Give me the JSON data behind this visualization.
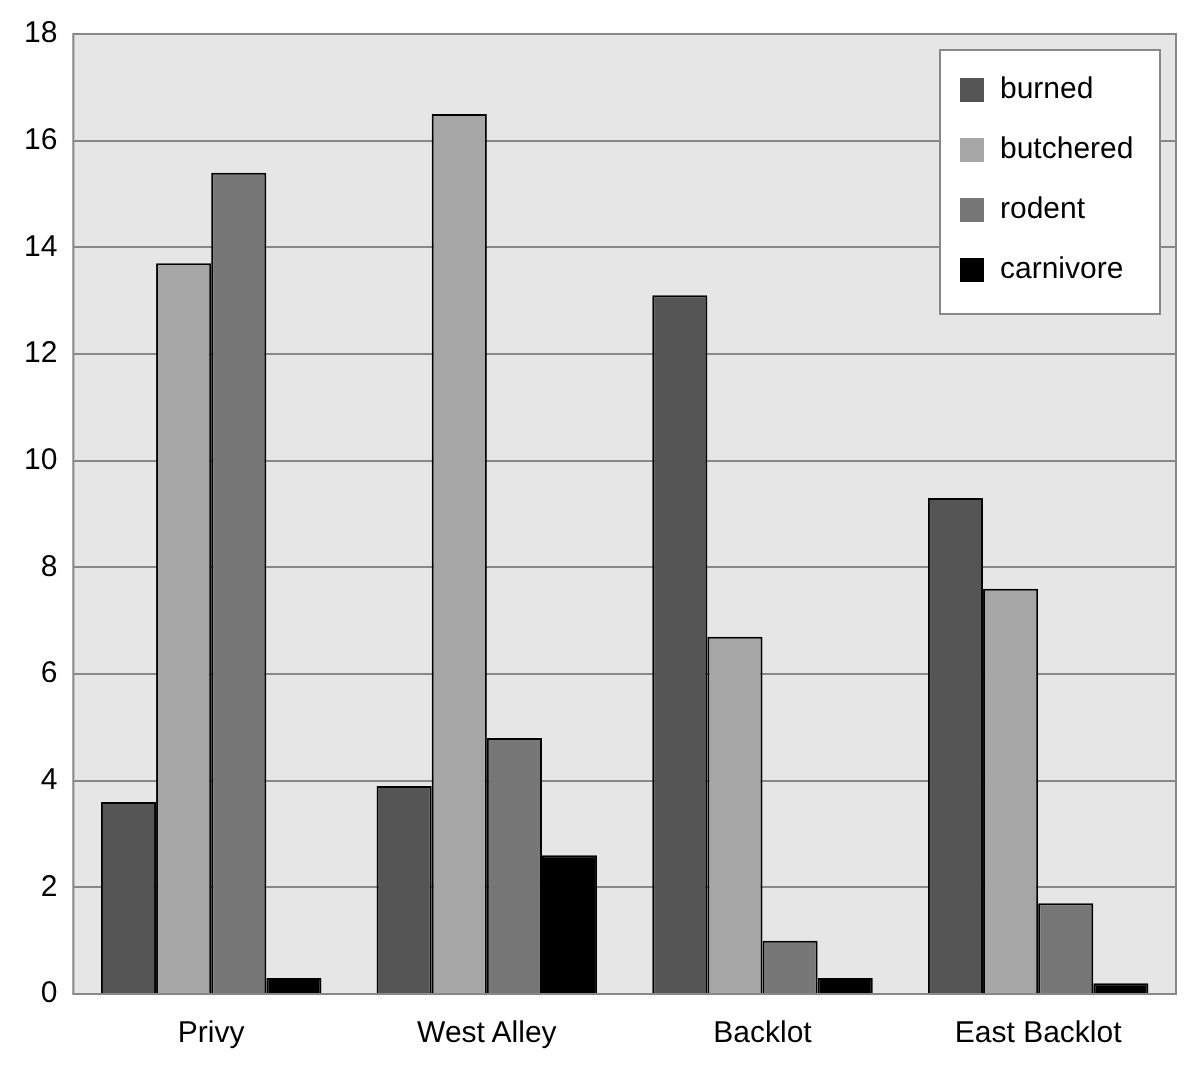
{
  "chart_data": {
    "type": "bar",
    "categories": [
      "Privy",
      "West Alley",
      "Backlot",
      "East Backlot"
    ],
    "series": [
      {
        "name": "burned",
        "color": "#555555",
        "values": [
          3.6,
          3.9,
          13.1,
          9.3
        ]
      },
      {
        "name": "butchered",
        "color": "#a6a6a6",
        "values": [
          13.7,
          16.5,
          6.7,
          7.6
        ]
      },
      {
        "name": "rodent",
        "color": "#777777",
        "values": [
          15.4,
          4.8,
          1.0,
          1.7
        ]
      },
      {
        "name": "carnivore",
        "color": "#000000",
        "values": [
          0.3,
          2.6,
          0.3,
          0.2
        ]
      }
    ],
    "ylim": [
      0,
      18
    ],
    "yticks": [
      0,
      2,
      4,
      6,
      8,
      10,
      12,
      14,
      16,
      18
    ],
    "grid": "y",
    "legend": "top right"
  }
}
